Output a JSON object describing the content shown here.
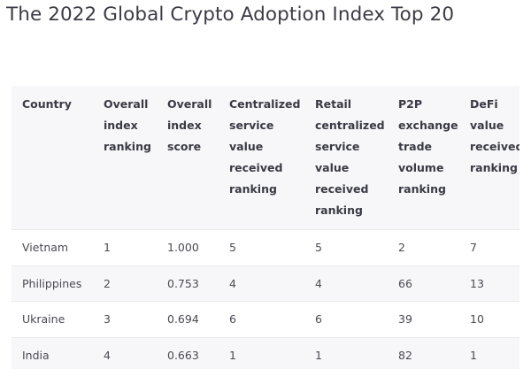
{
  "title": "The 2022 Global Crypto Adoption Index Top 20",
  "table": {
    "headers": [
      "Country",
      "Overall\nindex\nranking",
      "Overall\nindex\nscore",
      "Centralized\nservice\nvalue\nreceived\nranking",
      "Retail\ncentralized\nservice\nvalue\nreceived\nranking",
      "P2P\nexchange\ntrade\nvolume\nranking",
      "DeFi\nvalue\nreceived\nranking"
    ],
    "rows": [
      [
        "Vietnam",
        "1",
        "1.000",
        "5",
        "5",
        "2",
        "7"
      ],
      [
        "Philippines",
        "2",
        "0.753",
        "4",
        "4",
        "66",
        "13"
      ],
      [
        "Ukraine",
        "3",
        "0.694",
        "6",
        "6",
        "39",
        "10"
      ],
      [
        "India",
        "4",
        "0.663",
        "1",
        "1",
        "82",
        "1"
      ]
    ]
  }
}
